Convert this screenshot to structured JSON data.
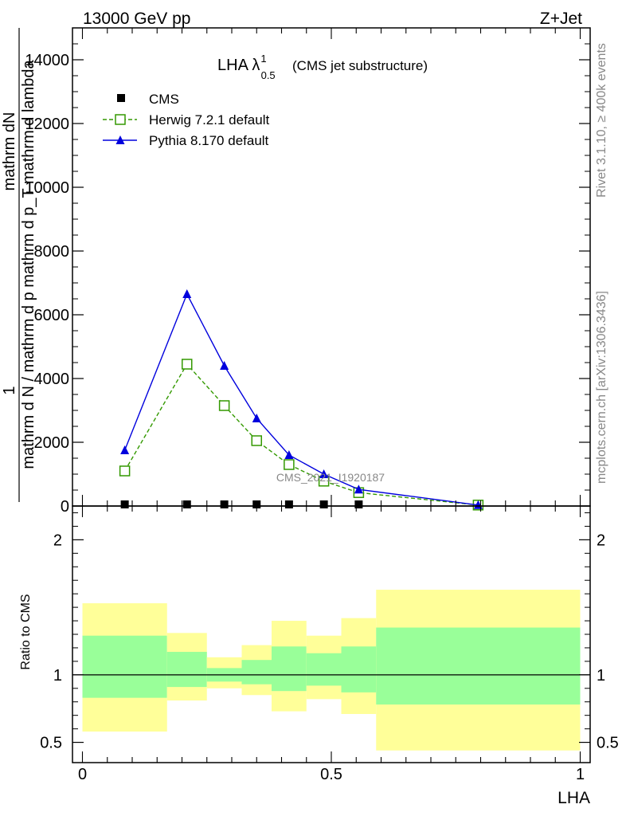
{
  "header": {
    "energy": "13000 GeV pp",
    "process": "Z+Jet"
  },
  "side_labels": {
    "rivet": "Rivet 3.1.10, ≥ 400k events",
    "mcplots": "mcplots.cern.ch [arXiv:1306.3436]"
  },
  "watermark": "CMS_2021_I1920187",
  "colors": {
    "cms": "#000000",
    "herwig": "#339900",
    "pythia": "#0000dd",
    "band_outer": "#ffff99",
    "band_inner": "#99ff99"
  },
  "chart_data": [
    {
      "type": "line",
      "title": "LHA λ",
      "title_sup": "1",
      "title_sub": "0.5",
      "title_suffix": "(CMS jet substructure)",
      "ylabel_top": "1",
      "ylabel_num": "mathrm dN",
      "ylabel_den": "mathrm d N / mathrm d p mathrm d p_T mathrm d lambda",
      "ylim": [
        0,
        15000
      ],
      "yticks": [
        0,
        2000,
        4000,
        6000,
        8000,
        10000,
        12000,
        14000
      ],
      "ytick_labels": [
        "0",
        "2000",
        "4000",
        "6000",
        "8000",
        "10000",
        "12000",
        "14000"
      ],
      "xlim": [
        -0.02,
        1.02
      ],
      "series": [
        {
          "name": "CMS",
          "marker": "square-filled",
          "x": [
            0.085,
            0.21,
            0.285,
            0.35,
            0.415,
            0.485,
            0.555,
            0.795
          ],
          "values": [
            50,
            50,
            50,
            50,
            50,
            50,
            50,
            30
          ]
        },
        {
          "name": "Herwig 7.2.1 default",
          "marker": "square-open",
          "dashed": true,
          "x": [
            0.085,
            0.21,
            0.285,
            0.35,
            0.415,
            0.485,
            0.555,
            0.795
          ],
          "values": [
            1100,
            4450,
            3150,
            2050,
            1300,
            780,
            420,
            30
          ]
        },
        {
          "name": "Pythia 8.170 default",
          "marker": "triangle-filled",
          "dashed": false,
          "x": [
            0.085,
            0.21,
            0.285,
            0.35,
            0.415,
            0.485,
            0.555,
            0.795
          ],
          "values": [
            1750,
            6650,
            4400,
            2750,
            1600,
            1000,
            520,
            30
          ]
        }
      ]
    },
    {
      "type": "area",
      "ylabel": "Ratio to CMS",
      "xlabel": "LHA",
      "ylim": [
        0.35,
        2.25
      ],
      "yticks": [
        0.5,
        1,
        2
      ],
      "ytick_labels": [
        "0.5",
        "1",
        "2"
      ],
      "xlim": [
        -0.02,
        1.02
      ],
      "xticks": [
        0,
        0.5,
        1
      ],
      "xtick_labels": [
        "0",
        "0.5",
        "1"
      ],
      "reference": 1,
      "bins": [
        {
          "lo": 0.0,
          "hi": 0.17,
          "inner": [
            0.83,
            1.29
          ],
          "outer": [
            0.58,
            1.53
          ]
        },
        {
          "lo": 0.17,
          "hi": 0.25,
          "inner": [
            0.91,
            1.17
          ],
          "outer": [
            0.81,
            1.31
          ]
        },
        {
          "lo": 0.25,
          "hi": 0.32,
          "inner": [
            0.95,
            1.05
          ],
          "outer": [
            0.9,
            1.13
          ]
        },
        {
          "lo": 0.32,
          "hi": 0.38,
          "inner": [
            0.93,
            1.11
          ],
          "outer": [
            0.85,
            1.22
          ]
        },
        {
          "lo": 0.38,
          "hi": 0.45,
          "inner": [
            0.88,
            1.21
          ],
          "outer": [
            0.73,
            1.4
          ]
        },
        {
          "lo": 0.45,
          "hi": 0.52,
          "inner": [
            0.92,
            1.16
          ],
          "outer": [
            0.82,
            1.29
          ]
        },
        {
          "lo": 0.52,
          "hi": 0.59,
          "inner": [
            0.87,
            1.21
          ],
          "outer": [
            0.71,
            1.42
          ]
        },
        {
          "lo": 0.59,
          "hi": 1.0,
          "inner": [
            0.78,
            1.35
          ],
          "outer": [
            0.44,
            1.63
          ]
        }
      ]
    }
  ]
}
